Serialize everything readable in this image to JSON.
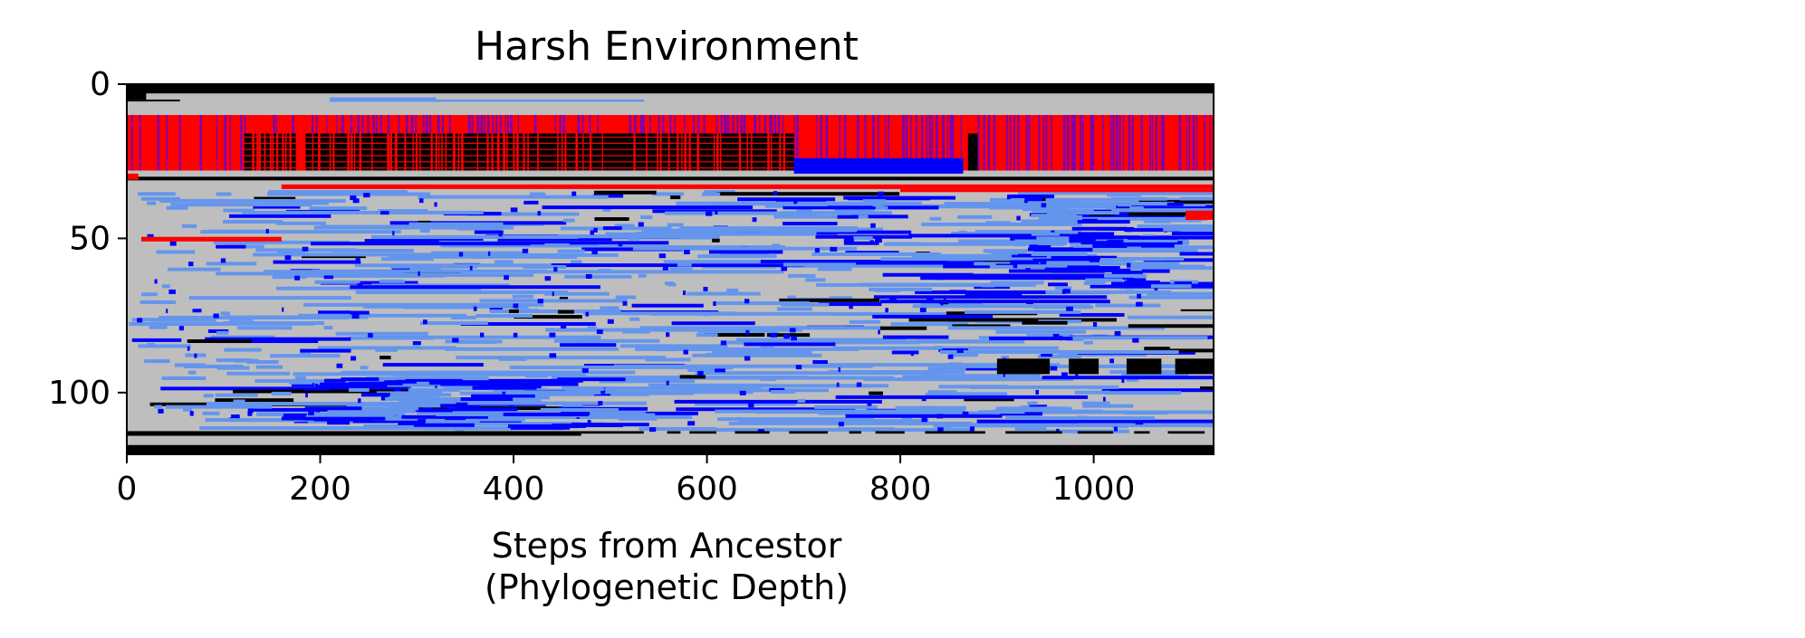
{
  "chart_data": {
    "type": "heatmap",
    "title": "Harsh Environment",
    "xlabel_lines": [
      "Steps from Ancestor",
      "(Phylogenetic Depth)"
    ],
    "ylabel": "",
    "xlim": [
      0,
      1124
    ],
    "ylim": [
      120,
      0
    ],
    "x_ticks": [
      0,
      200,
      400,
      600,
      800,
      1000
    ],
    "y_ticks": [
      0,
      50,
      100
    ],
    "colors": {
      "background": "#bebebe",
      "black": "#000000",
      "red": "#ff0000",
      "blue": "#0000ff",
      "light_blue": "#6495ed",
      "purple": "#7a00b5",
      "salmon": "#f08080"
    },
    "bands": [
      {
        "x0": 0,
        "x1": 1124,
        "y0": 0,
        "y1": 3,
        "color": "black"
      },
      {
        "x0": 0,
        "x1": 1124,
        "y0": 117,
        "y1": 120,
        "color": "black"
      },
      {
        "x0": 0,
        "x1": 1124,
        "y0": 10,
        "y1": 28,
        "color": "red",
        "stripe": "purple"
      },
      {
        "x0": 120,
        "x1": 690,
        "y0": 16,
        "y1": 28,
        "color": "black",
        "stripe": "red"
      },
      {
        "x0": 175,
        "x1": 185,
        "y0": 10,
        "y1": 28,
        "color": "red"
      },
      {
        "x0": 865,
        "x1": 880,
        "y0": 10,
        "y1": 28,
        "color": "red"
      },
      {
        "x0": 870,
        "x1": 880,
        "y0": 16,
        "y1": 28,
        "color": "black"
      },
      {
        "x0": 690,
        "x1": 865,
        "y0": 24,
        "y1": 29,
        "color": "blue"
      },
      {
        "x0": 0,
        "x1": 20,
        "y0": 0,
        "y1": 5,
        "color": "black"
      },
      {
        "x0": 0,
        "x1": 55,
        "y0": 5,
        "y1": 5.6,
        "color": "black"
      },
      {
        "x0": 0,
        "x1": 1124,
        "y0": 30,
        "y1": 31.2,
        "color": "black"
      },
      {
        "x0": 160,
        "x1": 1124,
        "y0": 32.5,
        "y1": 34,
        "color": "red"
      },
      {
        "x0": 800,
        "x1": 1124,
        "y0": 34,
        "y1": 35,
        "color": "red"
      },
      {
        "x0": 15,
        "x1": 160,
        "y0": 49.5,
        "y1": 51,
        "color": "red"
      },
      {
        "x0": 0,
        "x1": 12,
        "y0": 29,
        "y1": 31,
        "color": "red"
      },
      {
        "x0": 1095,
        "x1": 1124,
        "y0": 41,
        "y1": 44,
        "color": "red"
      },
      {
        "x0": 0,
        "x1": 470,
        "y0": 112.5,
        "y1": 114,
        "color": "black"
      },
      {
        "x0": 470,
        "x1": 1124,
        "y0": 112.5,
        "y1": 113.3,
        "color": "black",
        "dashed": true
      },
      {
        "x0": 900,
        "x1": 1124,
        "y0": 89,
        "y1": 94,
        "color": "black",
        "dashed": true
      },
      {
        "x0": 1090,
        "x1": 1124,
        "y0": 73,
        "y1": 73.6,
        "color": "black"
      },
      {
        "x0": 1110,
        "x1": 1124,
        "y0": 98,
        "y1": 99,
        "color": "black"
      }
    ]
  }
}
